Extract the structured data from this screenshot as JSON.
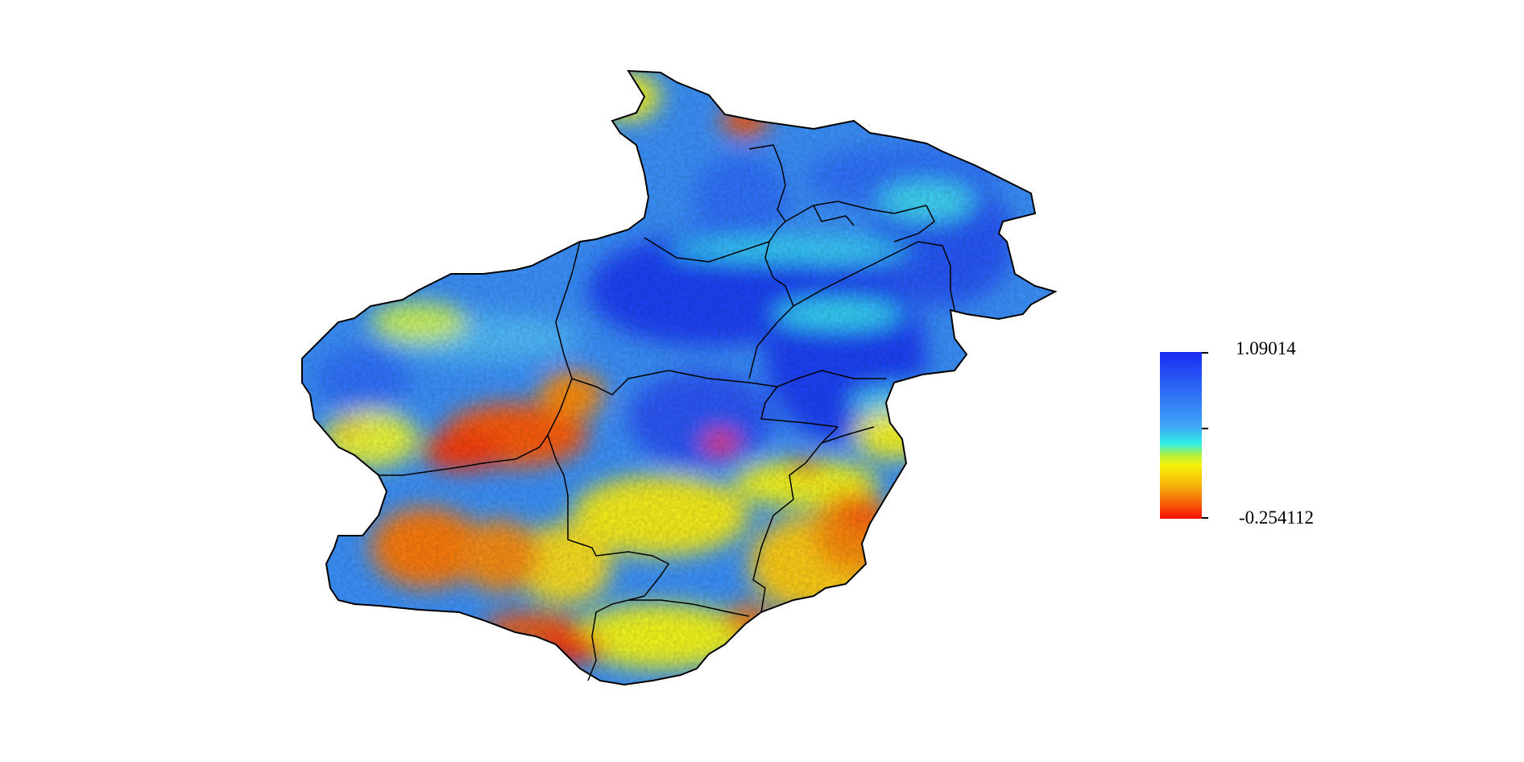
{
  "legend": {
    "max_label": "1.09014",
    "min_label": "-0.254112",
    "max_value": 1.09014,
    "min_value": -0.254112,
    "colors": [
      "#1a2af2",
      "#3fa7f6",
      "#2ff0e6",
      "#f7f20a",
      "#f5580a",
      "#f50a0a"
    ]
  }
}
